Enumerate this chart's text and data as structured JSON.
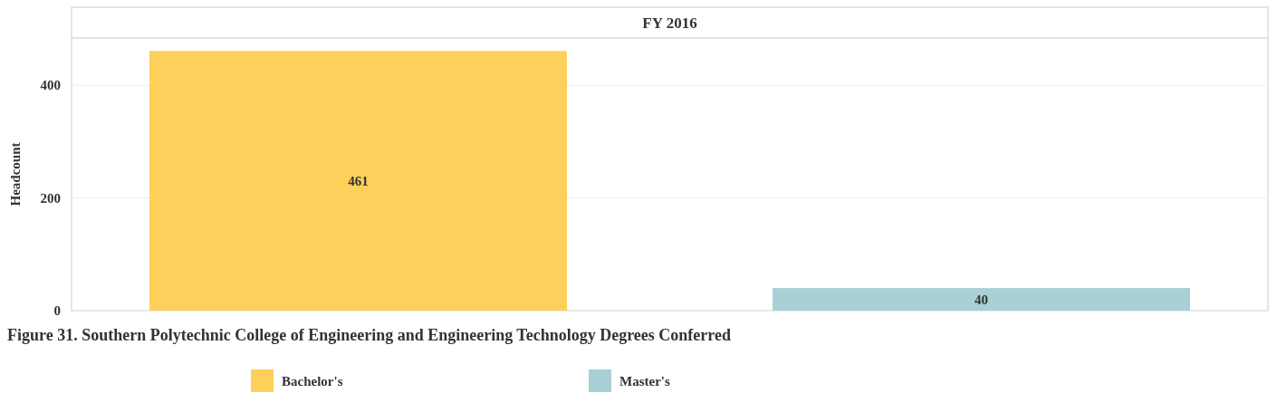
{
  "chart_data": {
    "type": "bar",
    "title": "Figure 31. Southern Polytechnic College of Engineering and Engineering Technology Degrees Conferred",
    "subtitle": "FY 2016",
    "ylabel": "Headcount",
    "categories": [
      null,
      null
    ],
    "stacked": true,
    "series": [
      {
        "name": "Bachelor's",
        "color": "#fdd05b",
        "values": [
          461,
          null
        ]
      },
      {
        "name": "Master's",
        "color": "#a8d0d5",
        "values": [
          null,
          40
        ]
      }
    ],
    "ylim": [
      0,
      484
    ],
    "yticks": [
      0,
      200,
      400
    ],
    "grid": "y",
    "data_labels": true,
    "legend": "bottom"
  }
}
